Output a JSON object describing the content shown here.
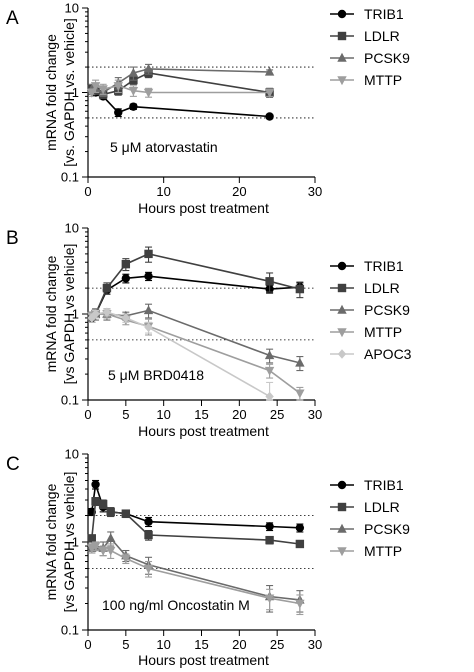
{
  "chart_data": [
    {
      "panel_letter": "A",
      "type": "line",
      "annotation": "5 μM atorvastatin",
      "xlabel": "Hours post treatment",
      "ylabel": [
        "mRNA fold change",
        "[vs. GAPDH vs. vehicle]"
      ],
      "xlim": [
        0,
        30
      ],
      "ylim": [
        0.1,
        10
      ],
      "yscale": "log",
      "xticks": [
        0,
        10,
        20,
        30
      ],
      "yticks": [
        {
          "value": 0.1,
          "label": "0.1"
        },
        {
          "value": 1,
          "label": "1"
        },
        {
          "value": 10,
          "label": "10"
        }
      ],
      "reference_lines": [
        0.5,
        2
      ],
      "legend_position": "right",
      "series": [
        {
          "name": "TRIB1",
          "marker": "circle",
          "color": "#000000",
          "points": [
            [
              0.5,
              1.1,
              0.1
            ],
            [
              1,
              1.0,
              0.08
            ],
            [
              2,
              0.9,
              0.06
            ],
            [
              4,
              0.58,
              0.06
            ],
            [
              6,
              0.68,
              0.05
            ],
            [
              24,
              0.52,
              0.03
            ]
          ]
        },
        {
          "name": "LDLR",
          "marker": "square",
          "color": "#404040",
          "points": [
            [
              0.5,
              1.1,
              0.1
            ],
            [
              1,
              1.05,
              0.1
            ],
            [
              2,
              0.95,
              0.1
            ],
            [
              4,
              1.05,
              0.12
            ],
            [
              6,
              1.4,
              0.15
            ],
            [
              8,
              1.7,
              0.2
            ],
            [
              24,
              1.0,
              0.12
            ]
          ]
        },
        {
          "name": "PCSK9",
          "marker": "triangle-up",
          "color": "#6b6b6b",
          "points": [
            [
              0.5,
              1.1,
              0.15
            ],
            [
              1,
              1.1,
              0.1
            ],
            [
              2,
              1.0,
              0.1
            ],
            [
              4,
              1.3,
              0.2
            ],
            [
              6,
              1.7,
              0.3
            ],
            [
              8,
              1.9,
              0.25
            ],
            [
              24,
              1.75,
              0.1
            ]
          ]
        },
        {
          "name": "MTTP",
          "marker": "triangle-down",
          "color": "#9e9e9e",
          "points": [
            [
              0.5,
              1.0,
              0.1
            ],
            [
              1,
              1.2,
              0.2
            ],
            [
              2,
              1.1,
              0.15
            ],
            [
              4,
              1.2,
              0.2
            ],
            [
              6,
              1.05,
              0.15
            ],
            [
              8,
              1.0,
              0.12
            ],
            [
              24,
              1.0,
              0.1
            ]
          ]
        }
      ]
    },
    {
      "panel_letter": "B",
      "type": "line",
      "annotation": "5 μM BRD0418",
      "xlabel": "Hours post treatment",
      "ylabel": [
        "mRNA fold change",
        "[vs GAPDH vs vehicle]"
      ],
      "xlim": [
        0,
        30
      ],
      "ylim": [
        0.1,
        10
      ],
      "yscale": "log",
      "xticks": [
        0,
        5,
        10,
        15,
        20,
        25,
        30
      ],
      "yticks": [
        {
          "value": 0.1,
          "label": "0.1"
        },
        {
          "value": 1,
          "label": "1"
        },
        {
          "value": 10,
          "label": "10"
        }
      ],
      "reference_lines": [
        0.5,
        2
      ],
      "legend_position": "right",
      "series": [
        {
          "name": "TRIB1",
          "marker": "circle",
          "color": "#000000",
          "points": [
            [
              0.5,
              0.9,
              0.1
            ],
            [
              1,
              1.0,
              0.1
            ],
            [
              2.5,
              1.9,
              0.2
            ],
            [
              5,
              2.6,
              0.3
            ],
            [
              8,
              2.75,
              0.3
            ],
            [
              24,
              1.95,
              0.2
            ],
            [
              28,
              2.05,
              0.25
            ]
          ]
        },
        {
          "name": "LDLR",
          "marker": "square",
          "color": "#404040",
          "points": [
            [
              0.5,
              0.95,
              0.1
            ],
            [
              1,
              1.0,
              0.1
            ],
            [
              2.5,
              2.0,
              0.3
            ],
            [
              5,
              3.8,
              0.6
            ],
            [
              8,
              5.0,
              1.0
            ],
            [
              24,
              2.4,
              0.6
            ],
            [
              28,
              1.95,
              0.4
            ]
          ]
        },
        {
          "name": "PCSK9",
          "marker": "triangle-up",
          "color": "#6b6b6b",
          "points": [
            [
              0.5,
              0.95,
              0.1
            ],
            [
              1,
              1.0,
              0.15
            ],
            [
              2.5,
              1.0,
              0.15
            ],
            [
              5,
              0.95,
              0.1
            ],
            [
              8,
              1.1,
              0.2
            ],
            [
              24,
              0.33,
              0.06
            ],
            [
              28,
              0.27,
              0.05
            ]
          ]
        },
        {
          "name": "MTTP",
          "marker": "triangle-down",
          "color": "#9e9e9e",
          "points": [
            [
              0.5,
              0.95,
              0.1
            ],
            [
              1,
              1.0,
              0.1
            ],
            [
              2.5,
              1.0,
              0.1
            ],
            [
              5,
              0.85,
              0.1
            ],
            [
              8,
              0.72,
              0.15
            ],
            [
              24,
              0.22,
              0.04
            ],
            [
              28,
              0.12,
              0.02
            ]
          ]
        },
        {
          "name": "APOC3",
          "marker": "diamond",
          "color": "#c8c8c8",
          "points": [
            [
              0.5,
              0.9,
              0.1
            ],
            [
              1,
              1.0,
              0.1
            ],
            [
              2.5,
              1.05,
              0.1
            ],
            [
              5,
              0.9,
              0.1
            ],
            [
              8,
              0.7,
              0.1
            ],
            [
              24,
              0.11,
              0.05
            ]
          ]
        }
      ]
    },
    {
      "panel_letter": "C",
      "type": "line",
      "annotation": "100 ng/ml Oncostatin M",
      "xlabel": "Hours post treatment",
      "ylabel": [
        "mRNA fold change",
        "[vs GAPDH vs vehicle]"
      ],
      "xlim": [
        0,
        30
      ],
      "ylim": [
        0.1,
        10
      ],
      "yscale": "log",
      "xticks": [
        0,
        5,
        10,
        15,
        20,
        25,
        30
      ],
      "yticks": [
        {
          "value": 0.1,
          "label": "0.1"
        },
        {
          "value": 1,
          "label": "1"
        },
        {
          "value": 10,
          "label": "10"
        }
      ],
      "reference_lines": [
        0.5,
        2
      ],
      "legend_position": "right",
      "series": [
        {
          "name": "TRIB1",
          "marker": "circle",
          "color": "#000000",
          "points": [
            [
              0.5,
              2.2,
              0.2
            ],
            [
              1,
              4.5,
              0.5
            ],
            [
              2,
              2.5,
              0.3
            ],
            [
              3,
              2.2,
              0.25
            ],
            [
              5,
              2.1,
              0.2
            ],
            [
              8,
              1.7,
              0.2
            ],
            [
              24,
              1.5,
              0.15
            ],
            [
              28,
              1.45,
              0.15
            ]
          ]
        },
        {
          "name": "LDLR",
          "marker": "square",
          "color": "#404040",
          "points": [
            [
              0.5,
              1.1,
              0.1
            ],
            [
              1,
              2.9,
              0.3
            ],
            [
              2,
              2.7,
              0.3
            ],
            [
              3,
              2.2,
              0.25
            ],
            [
              5,
              2.1,
              0.2
            ],
            [
              8,
              1.2,
              0.15
            ],
            [
              24,
              1.05,
              0.1
            ],
            [
              28,
              0.95,
              0.08
            ]
          ]
        },
        {
          "name": "PCSK9",
          "marker": "triangle-up",
          "color": "#6b6b6b",
          "points": [
            [
              0.5,
              0.85,
              0.1
            ],
            [
              1,
              0.9,
              0.1
            ],
            [
              2,
              0.85,
              0.15
            ],
            [
              3,
              1.1,
              0.2
            ],
            [
              5,
              0.7,
              0.1
            ],
            [
              8,
              0.55,
              0.12
            ],
            [
              24,
              0.24,
              0.08
            ],
            [
              28,
              0.22,
              0.06
            ]
          ]
        },
        {
          "name": "MTTP",
          "marker": "triangle-down",
          "color": "#9e9e9e",
          "points": [
            [
              0.5,
              0.85,
              0.1
            ],
            [
              1,
              0.9,
              0.1
            ],
            [
              2,
              0.8,
              0.1
            ],
            [
              3,
              0.8,
              0.15
            ],
            [
              5,
              0.65,
              0.08
            ],
            [
              8,
              0.5,
              0.1
            ],
            [
              24,
              0.23,
              0.06
            ],
            [
              28,
              0.2,
              0.05
            ]
          ]
        }
      ]
    }
  ]
}
